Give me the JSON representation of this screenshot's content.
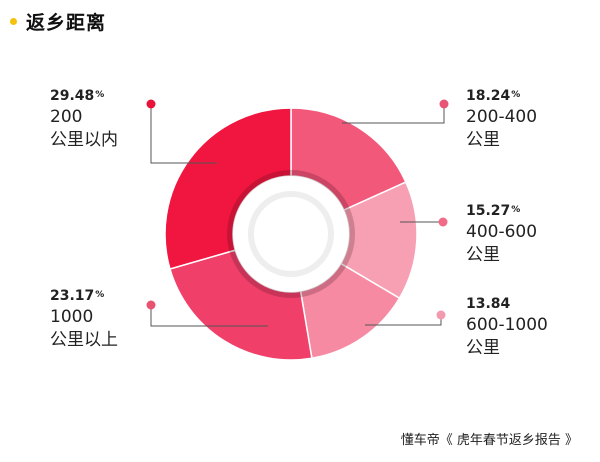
{
  "header": {
    "title": "返乡距离",
    "accent_color": "#f4c20d"
  },
  "chart_data": {
    "type": "pie",
    "variant": "donut",
    "title": "返乡距离",
    "slices": [
      {
        "label_line1": "200",
        "label_line2": "公里以内",
        "value": 29.48,
        "value_text": "29.48",
        "unit": "%",
        "color": "#f0163f",
        "dot_color": "#e8123a"
      },
      {
        "label_line1": "200-400",
        "label_line2": "公里",
        "value": 18.24,
        "value_text": "18.24",
        "unit": "%",
        "color": "#f2587a",
        "dot_color": "#e85474"
      },
      {
        "label_line1": "400-600",
        "label_line2": "公里",
        "value": 15.27,
        "value_text": "15.27",
        "unit": "%",
        "color": "#f8a0b3",
        "dot_color": "#ef6b87"
      },
      {
        "label_line1": "600-1000",
        "label_line2": "公里",
        "value": 13.84,
        "value_text": "13.84",
        "unit": "",
        "color": "#f58aa2",
        "dot_color": "#f29ab0"
      },
      {
        "label_line1": "1000",
        "label_line2": "公里以上",
        "value": 23.17,
        "value_text": "23.17",
        "unit": "%",
        "color": "#f0406a",
        "dot_color": "#e8536f"
      }
    ]
  },
  "footer": {
    "source": "懂车帝《 虎年春节返乡报告 》"
  }
}
